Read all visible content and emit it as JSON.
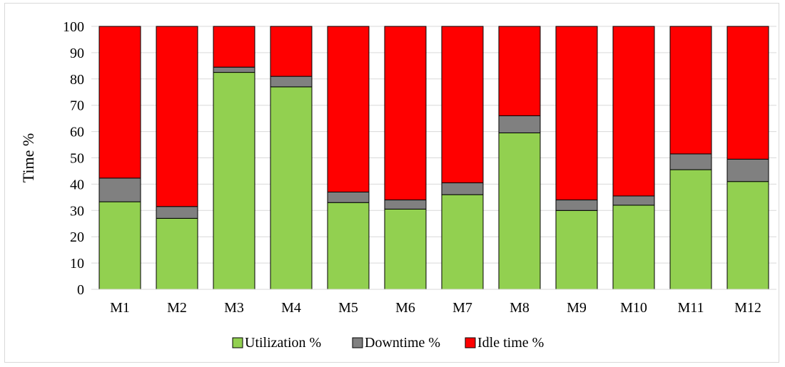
{
  "chart_data": {
    "type": "bar",
    "stacked": true,
    "categories": [
      "M1",
      "M2",
      "M3",
      "M4",
      "M5",
      "M6",
      "M7",
      "M8",
      "M9",
      "M10",
      "M11",
      "M12"
    ],
    "series": [
      {
        "name": "Utilization %",
        "color": "#92d050",
        "values": [
          33.3,
          27.0,
          82.5,
          77.0,
          33.0,
          30.5,
          36.0,
          59.5,
          30.0,
          32.0,
          45.5,
          41.0
        ]
      },
      {
        "name": "Downtime %",
        "color": "#808080",
        "values": [
          9.0,
          4.5,
          2.0,
          4.0,
          4.0,
          3.5,
          4.5,
          6.5,
          4.0,
          3.5,
          6.0,
          8.5
        ]
      },
      {
        "name": "Idle time %",
        "color": "#ff0000",
        "values": [
          57.7,
          68.5,
          15.5,
          19.0,
          63.0,
          66.0,
          59.5,
          34.0,
          66.0,
          64.5,
          48.5,
          50.5
        ]
      }
    ],
    "title": "",
    "xlabel": "",
    "ylabel": "Time %",
    "ylim": [
      0,
      100
    ],
    "yticks": [
      "0",
      "10",
      "20",
      "30",
      "40",
      "50",
      "60",
      "70",
      "80",
      "90",
      "100"
    ],
    "grid": true,
    "legend_position": "bottom"
  }
}
